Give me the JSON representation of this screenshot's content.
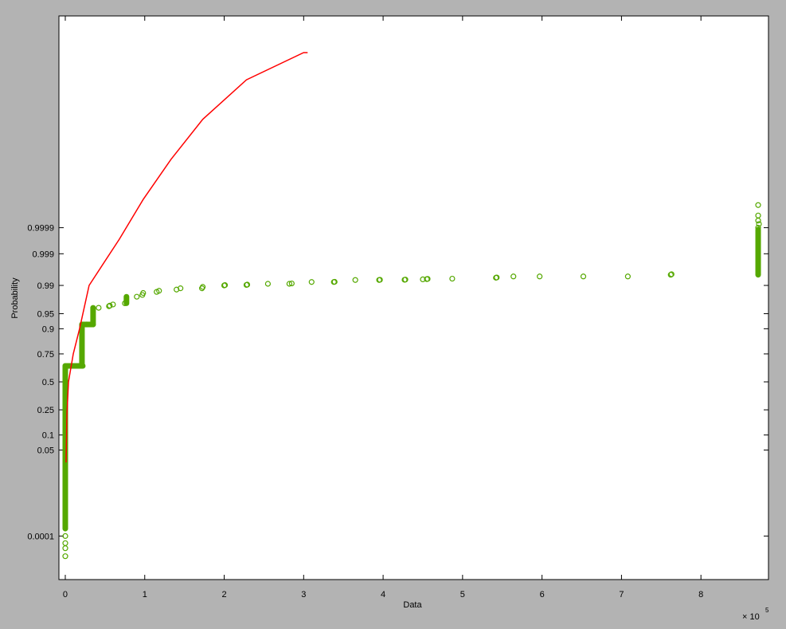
{
  "chart_data": {
    "type": "scatter",
    "plot_kind": "normal probability plot",
    "xlabel": "Data",
    "ylabel": "Probability",
    "x_multiplier": "× 10",
    "x_multiplier_exp": "5",
    "xlim": [
      -0.08,
      8.85
    ],
    "ylim": [
      1e-06,
      1
    ],
    "x_scale": "linear",
    "y_scale": "normal probability",
    "grid": false,
    "xticks": [
      "0",
      "1",
      "2",
      "3",
      "4",
      "5",
      "6",
      "7",
      "8"
    ],
    "yticks": [
      "0.0001",
      "0.05",
      "0.1",
      "0.25",
      "0.5",
      "0.75",
      "0.9",
      "0.95",
      "0.99",
      "0.999",
      "0.9999"
    ],
    "colors": {
      "data": "#55a800",
      "fit": "#ff0000",
      "background": "#b3b3b3"
    },
    "fit_line": [
      [
        0.01,
        0.026
      ],
      [
        0.02,
        0.21
      ],
      [
        0.04,
        0.5
      ],
      [
        0.1,
        0.75
      ],
      [
        0.18,
        0.9
      ],
      [
        0.3,
        0.99
      ],
      [
        0.68,
        0.99971
      ],
      [
        0.98,
        0.9999946
      ],
      [
        1.33,
        0.99999996
      ],
      [
        1.73,
        0.99999999988
      ],
      [
        2.28,
        0.99999999999984
      ],
      [
        3.0,
        0.999999999999999
      ],
      [
        3.05,
        0.999999999999999
      ]
    ],
    "data_segments": [
      {
        "x": [
          0.0,
          0.0
        ],
        "p": [
          0.0002,
          0.65
        ]
      },
      {
        "x": [
          0.0,
          0.22
        ],
        "p": [
          0.65,
          0.65
        ]
      },
      {
        "x": [
          0.21,
          0.21
        ],
        "p": [
          0.65,
          0.917
        ]
      },
      {
        "x": [
          0.21,
          0.35
        ],
        "p": [
          0.917,
          0.917
        ]
      },
      {
        "x": [
          0.35,
          0.35
        ],
        "p": [
          0.917,
          0.963
        ]
      },
      {
        "x": [
          0.77,
          0.77
        ],
        "p": [
          0.971,
          0.98
        ]
      },
      {
        "x": [
          8.72,
          8.72
        ],
        "p": [
          0.9951,
          0.99988
        ]
      }
    ],
    "data_points": [
      [
        0.0,
        0.0001
      ],
      [
        0.0,
        5e-05
      ],
      [
        0.0,
        3e-05
      ],
      [
        0.0,
        1.3e-05
      ],
      [
        0.27,
        0.917
      ],
      [
        0.42,
        0.963
      ],
      [
        0.55,
        0.966
      ],
      [
        0.56,
        0.967
      ],
      [
        0.6,
        0.969
      ],
      [
        0.75,
        0.971
      ],
      [
        0.9,
        0.98
      ],
      [
        0.97,
        0.982
      ],
      [
        0.98,
        0.984
      ],
      [
        1.15,
        0.985
      ],
      [
        1.18,
        0.986
      ],
      [
        1.4,
        0.987
      ],
      [
        1.45,
        0.988
      ],
      [
        1.72,
        0.988
      ],
      [
        1.73,
        0.989
      ],
      [
        2.0,
        0.99
      ],
      [
        2.01,
        0.9902
      ],
      [
        2.28,
        0.9903
      ],
      [
        2.29,
        0.9905
      ],
      [
        2.55,
        0.991
      ],
      [
        2.82,
        0.991
      ],
      [
        2.85,
        0.9912
      ],
      [
        3.1,
        0.992
      ],
      [
        3.38,
        0.992
      ],
      [
        3.39,
        0.9921
      ],
      [
        3.65,
        0.993
      ],
      [
        3.95,
        0.993
      ],
      [
        3.96,
        0.9931
      ],
      [
        4.27,
        0.9931
      ],
      [
        4.28,
        0.9932
      ],
      [
        4.5,
        0.9933
      ],
      [
        4.55,
        0.9934
      ],
      [
        4.56,
        0.9935
      ],
      [
        4.87,
        0.9936
      ],
      [
        5.42,
        0.994
      ],
      [
        5.43,
        0.9941
      ],
      [
        5.64,
        0.9945
      ],
      [
        5.97,
        0.9945
      ],
      [
        6.52,
        0.9945
      ],
      [
        7.08,
        0.9945
      ],
      [
        7.62,
        0.9951
      ],
      [
        7.63,
        0.9953
      ],
      [
        8.72,
        0.99999
      ],
      [
        8.72,
        0.99997
      ],
      [
        8.72,
        0.99995
      ],
      [
        8.72,
        0.9999
      ],
      [
        8.73,
        0.99993
      ]
    ]
  }
}
